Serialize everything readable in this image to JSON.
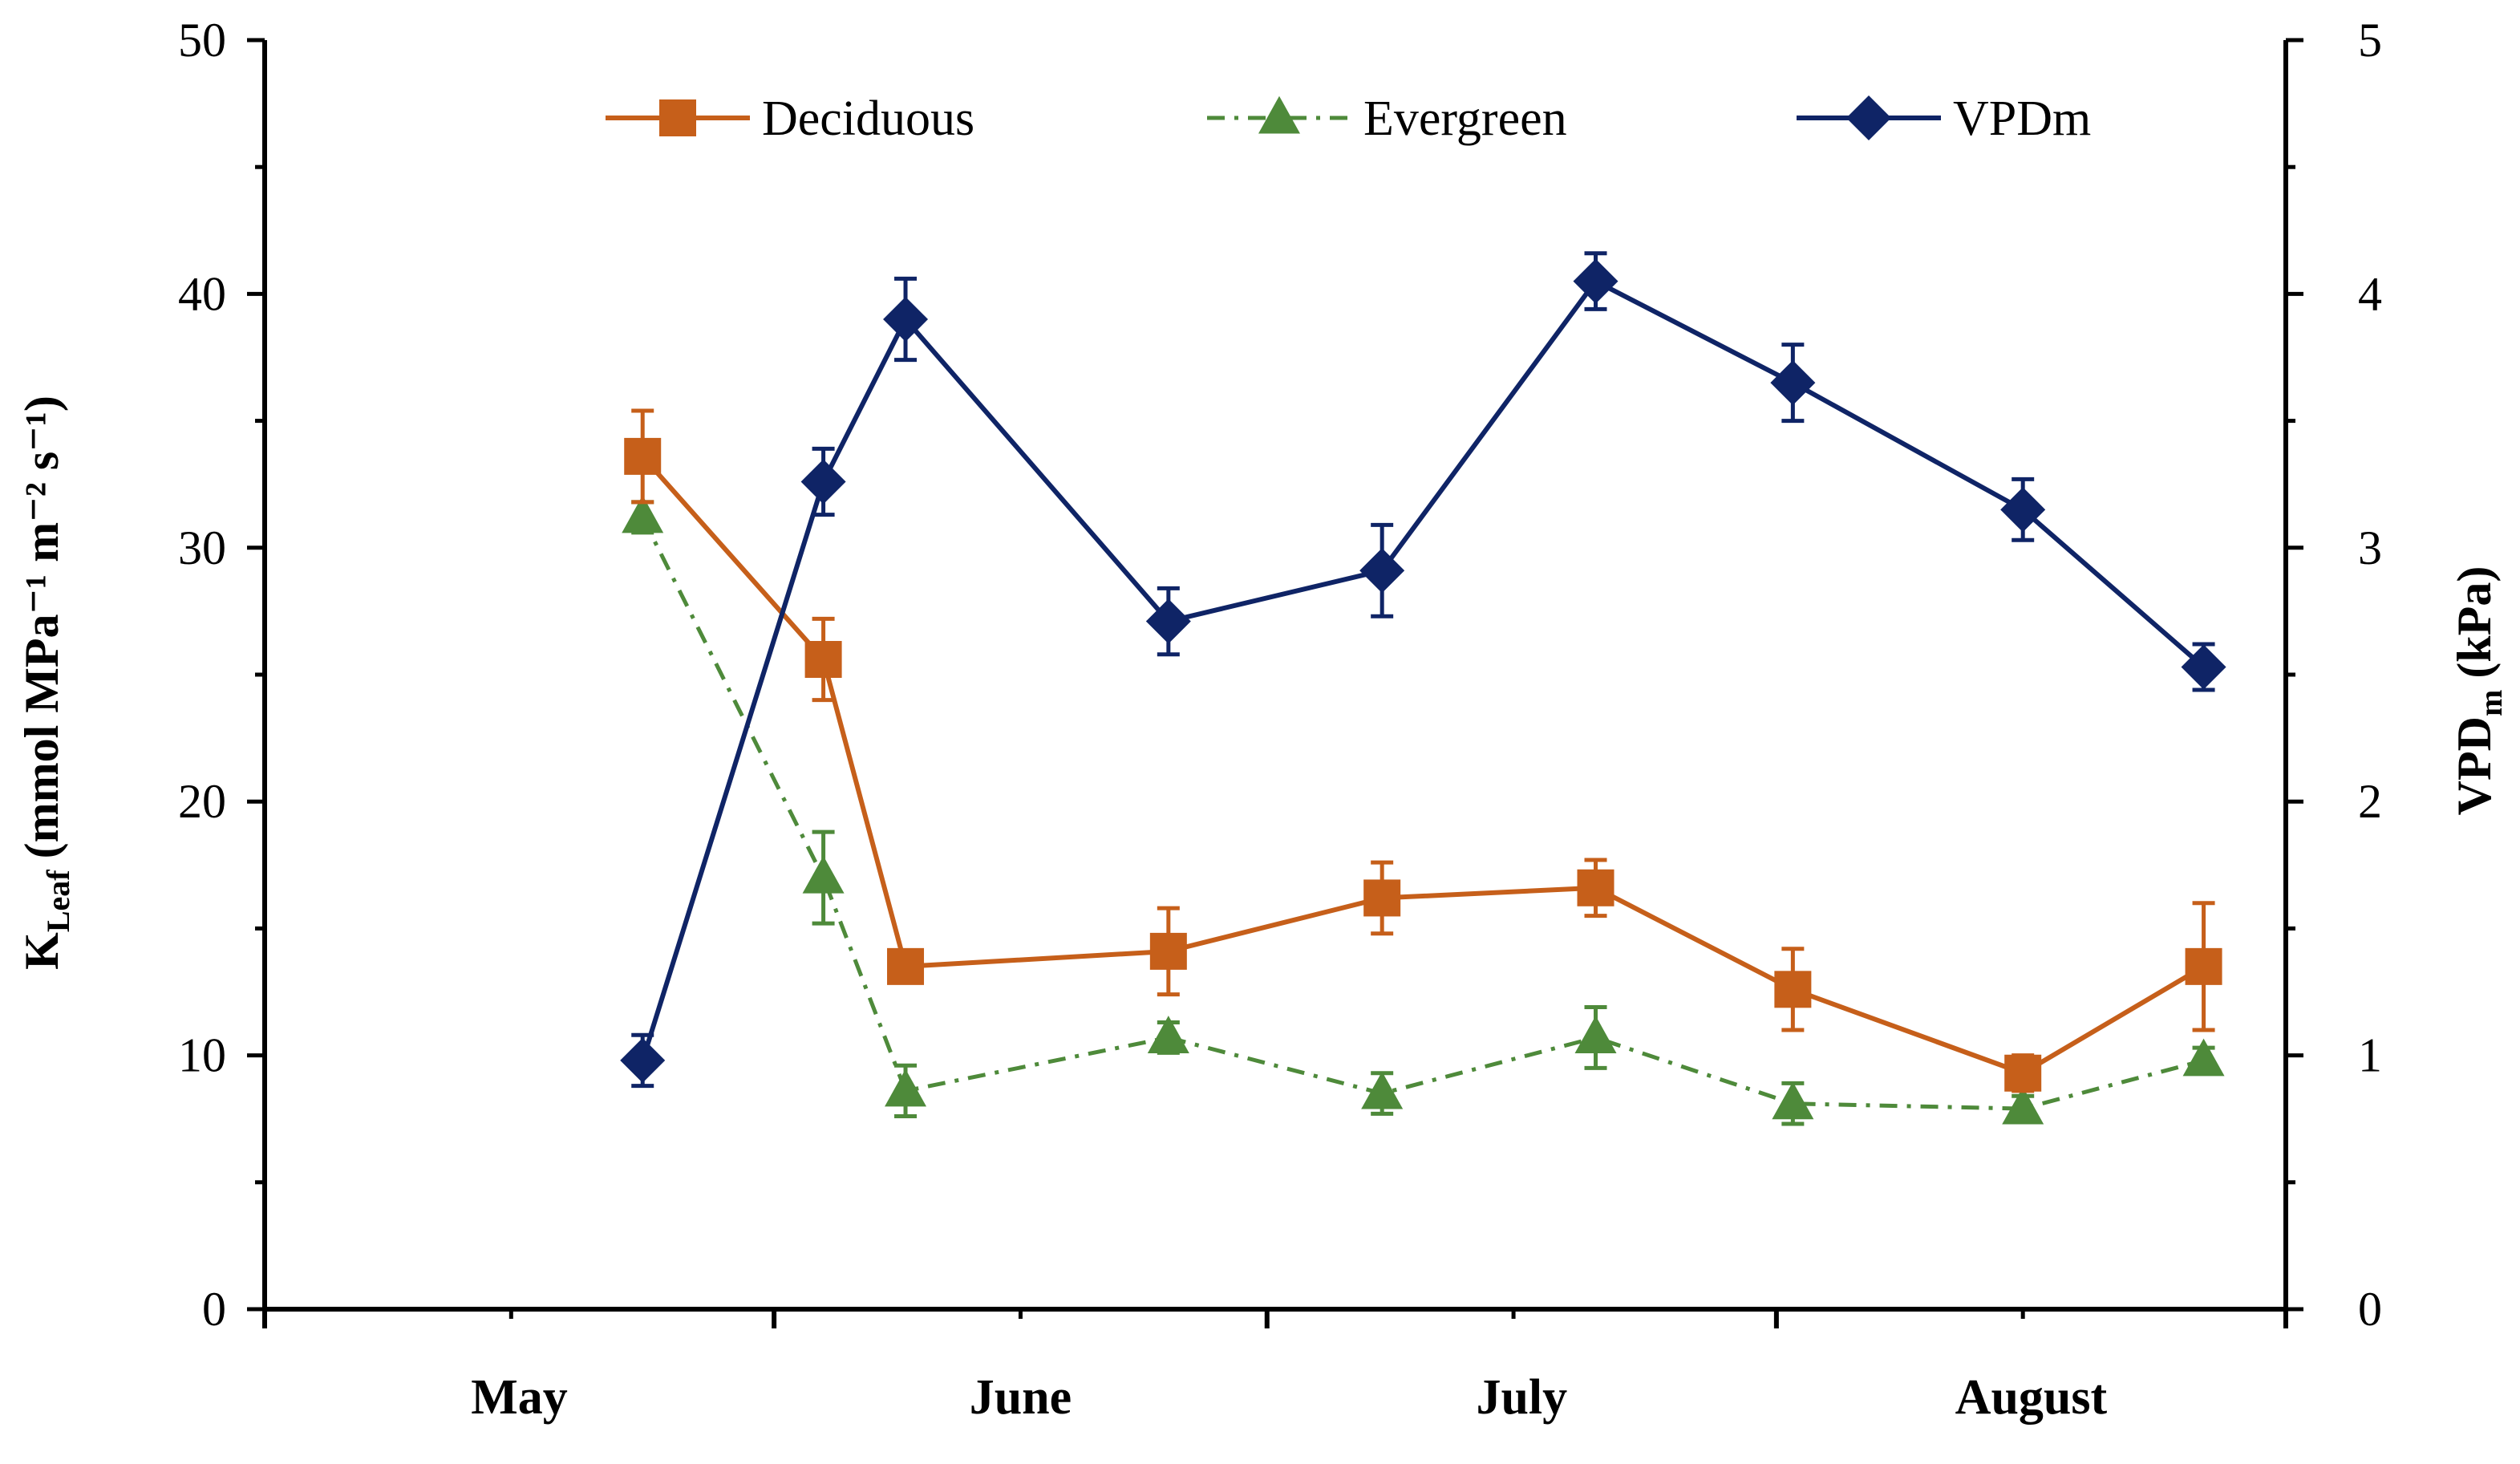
{
  "chart_data": {
    "type": "line",
    "x_months": [
      "May",
      "June",
      "July",
      "August"
    ],
    "left_axis": {
      "label_main": "K",
      "label_sub": "Leaf",
      "label_units": "(mmol MPa⁻¹ m⁻² s⁻¹)",
      "ylim": [
        0,
        50
      ],
      "ticks": [
        "0",
        "10",
        "20",
        "30",
        "40",
        "50"
      ]
    },
    "right_axis": {
      "label_main": "VPD",
      "label_sub": "m",
      "label_units": "(kPa)",
      "ylim": [
        0,
        5
      ],
      "ticks": [
        "0",
        "1",
        "2",
        "3",
        "4",
        "5"
      ]
    },
    "series": [
      {
        "name": "Deciduous",
        "axis": "left",
        "color": "#C65F1A",
        "marker": "square",
        "line": "solid",
        "points": [
          {
            "x": "May 24",
            "y": 33.6,
            "err": 1.8
          },
          {
            "x": "June 4",
            "y": 25.6,
            "err": 1.6
          },
          {
            "x": "June 9",
            "y": 13.5,
            "err": 0.6
          },
          {
            "x": "June 25",
            "y": 14.1,
            "err": 1.7
          },
          {
            "x": "July 8",
            "y": 16.2,
            "err": 1.4
          },
          {
            "x": "July 21",
            "y": 16.6,
            "err": 1.1
          },
          {
            "x": "August 2",
            "y": 12.6,
            "err": 1.6
          },
          {
            "x": "August 16",
            "y": 9.3,
            "err": 0.7
          },
          {
            "x": "August 27",
            "y": 13.5,
            "err": 2.5
          }
        ]
      },
      {
        "name": "Evergreen",
        "axis": "left",
        "color": "#4E8A3A",
        "marker": "triangle",
        "line": "dash-dot",
        "points": [
          {
            "x": "May 24",
            "y": 31.2,
            "err": 0.6
          },
          {
            "x": "June 4",
            "y": 17.0,
            "err": 1.8
          },
          {
            "x": "June 9",
            "y": 8.6,
            "err": 1.0
          },
          {
            "x": "June 25",
            "y": 10.7,
            "err": 0.6
          },
          {
            "x": "July 8",
            "y": 8.5,
            "err": 0.8
          },
          {
            "x": "July 21",
            "y": 10.7,
            "err": 1.2
          },
          {
            "x": "August 2",
            "y": 8.1,
            "err": 0.8
          },
          {
            "x": "August 16",
            "y": 7.9,
            "err": 0.5
          },
          {
            "x": "August 27",
            "y": 9.8,
            "err": 0.5
          }
        ]
      },
      {
        "name": "VPDm",
        "axis": "right",
        "color": "#0F2466",
        "marker": "diamond",
        "line": "solid",
        "points": [
          {
            "x": "May 24",
            "y": 0.98,
            "err": 0.1
          },
          {
            "x": "June 4",
            "y": 3.26,
            "err": 0.13
          },
          {
            "x": "June 9",
            "y": 3.9,
            "err": 0.16
          },
          {
            "x": "June 25",
            "y": 2.71,
            "err": 0.13
          },
          {
            "x": "July 8",
            "y": 2.91,
            "err": 0.18
          },
          {
            "x": "July 21",
            "y": 4.05,
            "err": 0.11
          },
          {
            "x": "August 2",
            "y": 3.65,
            "err": 0.15
          },
          {
            "x": "August 16",
            "y": 3.15,
            "err": 0.12
          },
          {
            "x": "August 27",
            "y": 2.53,
            "err": 0.09
          }
        ]
      }
    ],
    "legend_position": "top-center",
    "grid": false
  }
}
